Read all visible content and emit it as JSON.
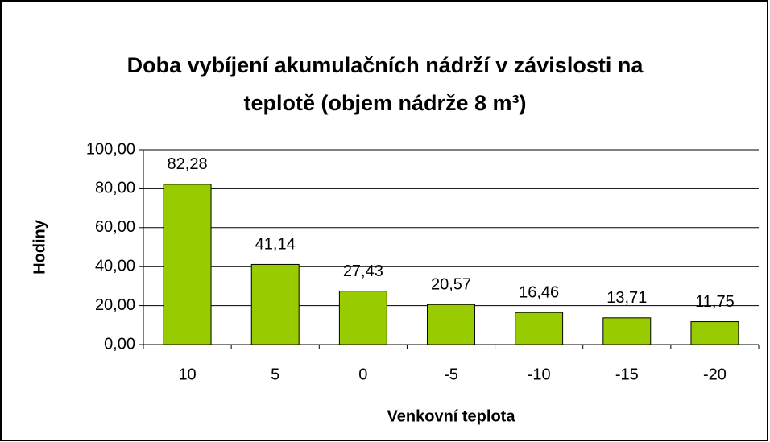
{
  "chart_data": {
    "type": "bar",
    "title": [
      "Doba vybíjení akumulačních nádrží v závislosti na",
      "teplotě (objem nádrže 8 m³)"
    ],
    "x_label": "Venkovní teplota",
    "y_label": "Hodiny",
    "categories": [
      "10",
      "5",
      "0",
      "-5",
      "-10",
      "-15",
      "-20"
    ],
    "values": [
      82.28,
      41.14,
      27.43,
      20.57,
      16.46,
      13.71,
      11.75
    ],
    "value_labels": [
      "82,28",
      "41,14",
      "27,43",
      "20,57",
      "16,46",
      "13,71",
      "11,75"
    ],
    "color": "#99cc00",
    "ylim": [
      0,
      100
    ],
    "yticks": [
      {
        "value": 0,
        "label": "0,00"
      },
      {
        "value": 20,
        "label": "20,00"
      },
      {
        "value": 40,
        "label": "40,00"
      },
      {
        "value": 60,
        "label": "60,00"
      },
      {
        "value": 80,
        "label": "80,00"
      },
      {
        "value": 100,
        "label": "100,00"
      }
    ],
    "grid": true
  }
}
